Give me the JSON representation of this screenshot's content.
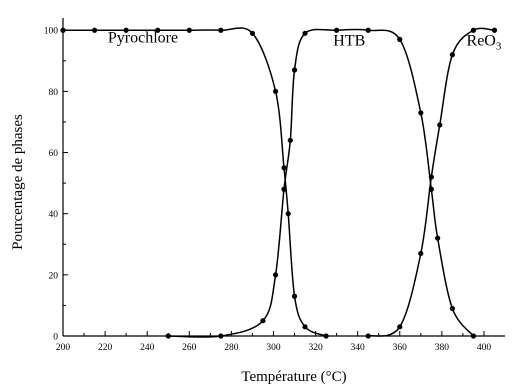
{
  "chart_data": {
    "type": "line",
    "xlabel": "Température (°C)",
    "ylabel": "Pourcentage de phases",
    "xlim": [
      200,
      410
    ],
    "ylim": [
      0,
      104
    ],
    "x_ticks": [
      200,
      220,
      240,
      260,
      280,
      300,
      320,
      340,
      360,
      380,
      400
    ],
    "y_ticks": [
      0,
      20,
      40,
      60,
      80,
      100
    ],
    "grid": false,
    "annotations": [
      {
        "text": "Pyrochlore",
        "x": 238,
        "y": 96
      },
      {
        "text": "HTB",
        "x": 336,
        "y": 95
      },
      {
        "text": "ReO",
        "subscript": "3",
        "x": 400,
        "y": 95
      }
    ],
    "series": [
      {
        "points": [
          [
            200,
            100
          ],
          [
            215,
            100
          ],
          [
            230,
            100
          ],
          [
            245,
            100
          ],
          [
            260,
            100
          ],
          [
            275,
            100
          ],
          [
            290,
            99
          ],
          [
            301,
            80
          ],
          [
            305,
            55
          ],
          [
            307,
            40
          ],
          [
            310,
            13
          ],
          [
            315,
            3
          ],
          [
            325,
            0
          ]
        ]
      },
      {
        "points": [
          [
            250,
            0
          ],
          [
            275,
            0
          ],
          [
            295,
            5
          ],
          [
            301,
            20
          ],
          [
            305,
            48
          ],
          [
            308,
            64
          ],
          [
            310,
            87
          ],
          [
            315,
            99
          ],
          [
            330,
            100
          ],
          [
            345,
            100
          ],
          [
            360,
            97
          ],
          [
            370,
            73
          ],
          [
            375,
            48
          ],
          [
            378,
            32
          ],
          [
            385,
            9
          ],
          [
            395,
            0
          ]
        ]
      },
      {
        "points": [
          [
            345,
            0
          ],
          [
            360,
            3
          ],
          [
            370,
            27
          ],
          [
            375,
            52
          ],
          [
            379,
            69
          ],
          [
            385,
            92
          ],
          [
            395,
            100
          ],
          [
            405,
            100
          ]
        ]
      }
    ]
  }
}
